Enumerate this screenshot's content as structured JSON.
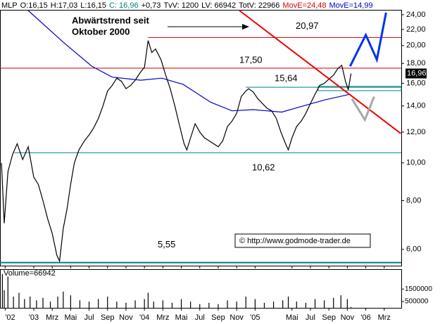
{
  "header": [
    {
      "text": "MLP",
      "color": "#000000"
    },
    {
      "text": "O:16,15",
      "color": "#000000"
    },
    {
      "text": "H:17,03",
      "color": "#000000"
    },
    {
      "text": "L:16,15",
      "color": "#000000"
    },
    {
      "text": "C: 16,96",
      "color": "#008080"
    },
    {
      "text": "+0,73",
      "color": "#000000"
    },
    {
      "text": "TvV: 1200",
      "color": "#000000"
    },
    {
      "text": "LV: 66942",
      "color": "#000000"
    },
    {
      "text": "TotV: 22966",
      "color": "#000000"
    },
    {
      "text": "MovE=24,48",
      "color": "#dd0000"
    },
    {
      "text": "MovE=14,99",
      "color": "#0000cc"
    }
  ],
  "annotation": [
    "Abwärtstrend seit",
    "Oktober 2000"
  ],
  "copyright": "© http://www.godmode-trader.de",
  "chart_data": [
    {
      "type": "line",
      "log_scale": true,
      "xlim": [
        -3.66,
        39.85
      ],
      "ylim": [
        5.45,
        24.7
      ],
      "xticks": [
        {
          "value": -3.1,
          "label": "'02"
        },
        {
          "value": 0,
          "label": "'03"
        },
        {
          "value": 2,
          "label": "Mrz"
        },
        {
          "value": 4,
          "label": "Mai"
        },
        {
          "value": 6,
          "label": "Jul"
        },
        {
          "value": 8,
          "label": "Sep"
        },
        {
          "value": 10,
          "label": "Nov"
        },
        {
          "value": 12,
          "label": "'04"
        },
        {
          "value": 14,
          "label": "Mrz"
        },
        {
          "value": 16,
          "label": "Mai"
        },
        {
          "value": 18,
          "label": "Jul"
        },
        {
          "value": 20,
          "label": "Sep"
        },
        {
          "value": 22,
          "label": "Nov"
        },
        {
          "value": 24,
          "label": "'05"
        },
        {
          "value": 28,
          "label": "Mai"
        },
        {
          "value": 30,
          "label": "Jul"
        },
        {
          "value": 32,
          "label": "Sep"
        },
        {
          "value": 34,
          "label": "Nov"
        },
        {
          "value": 36,
          "label": "'06"
        },
        {
          "value": 38,
          "label": "Mrz"
        }
      ],
      "yticks": [
        {
          "value": 6,
          "label": "6,00"
        },
        {
          "value": 8,
          "label": "8,00"
        },
        {
          "value": 10,
          "label": "10,00"
        },
        {
          "value": 12,
          "label": "12,00"
        },
        {
          "value": 14,
          "label": "14,00"
        },
        {
          "value": 16,
          "label": "16,00"
        },
        {
          "value": 18,
          "label": "18,00"
        },
        {
          "value": 20,
          "label": "20,00"
        },
        {
          "value": 22,
          "label": "22,00"
        },
        {
          "value": 24,
          "label": "24,00"
        }
      ],
      "series": [
        {
          "color": "#000000",
          "x": [
            -3.5,
            -3.2,
            -2.8,
            -2.3,
            -1.8,
            -1.2,
            -0.6,
            0,
            0.5,
            1,
            1.5,
            2,
            2.5,
            2.8,
            3.2,
            3.6,
            4,
            4.4,
            4.9,
            5.5,
            6,
            6.5,
            7,
            7.5,
            8,
            8.5,
            9,
            9.5,
            10,
            10.5,
            11,
            11.5,
            12,
            12.4,
            12.8,
            13.2,
            13.8,
            14.3,
            14.8,
            15.3,
            15.8,
            16.3,
            16.6,
            17,
            17.5,
            18,
            18.5,
            19,
            19.5,
            20,
            20.5,
            21,
            21.5,
            22,
            22.5,
            23,
            23.3,
            23.8,
            24.3,
            24.8,
            25.3,
            25.8,
            26.3,
            26.8,
            27.3,
            27.6,
            28,
            28.5,
            29,
            29.5,
            30,
            30.5,
            31,
            31.5,
            32,
            32.5,
            33,
            33.4,
            33.8,
            34.1,
            34.4
          ],
          "values": [
            10.0,
            7.0,
            9.5,
            10.5,
            11.2,
            10.2,
            11.0,
            9.2,
            8.8,
            8.0,
            7.2,
            6.6,
            5.8,
            5.6,
            6.8,
            7.6,
            8.8,
            10.0,
            10.8,
            11.4,
            11.8,
            12.3,
            13.0,
            14.0,
            15.3,
            15.8,
            16.5,
            16.2,
            15.5,
            15.8,
            16.3,
            17.0,
            17.6,
            20.6,
            19.2,
            19.6,
            18.4,
            16.8,
            15.5,
            14.0,
            12.5,
            11.2,
            10.8,
            11.6,
            12.6,
            12.0,
            11.6,
            11.4,
            11.2,
            11.0,
            11.4,
            12.4,
            12.8,
            13.4,
            14.8,
            15.3,
            15.5,
            15.2,
            14.6,
            14.2,
            13.8,
            13.6,
            13.0,
            12.0,
            11.2,
            10.8,
            11.6,
            12.4,
            12.8,
            13.4,
            14.2,
            15.0,
            15.8,
            16.0,
            16.4,
            16.8,
            17.5,
            17.8,
            16.2,
            15.4,
            16.96
          ]
        },
        {
          "color": "#0000cc",
          "x": [
            -0.6,
            3.2,
            6.3,
            8.5,
            11.6,
            13.9,
            16.2,
            19.2,
            21.5,
            23.8,
            26.9,
            29.2,
            31.5,
            34.3
          ],
          "values": [
            24.6,
            20.4,
            17.7,
            16.6,
            16.3,
            16.5,
            15.9,
            14.3,
            13.6,
            13.7,
            13.5,
            14.0,
            14.5,
            15.0
          ]
        }
      ],
      "levels": [
        {
          "value": 20.97,
          "label": "20,97",
          "color": "#cc0000",
          "x": 12.4
        },
        {
          "value": 17.5,
          "label": "17,50",
          "color": "#cc0000"
        },
        {
          "value": 15.64,
          "label": "15,64",
          "color": "#008080",
          "x": 23.0
        },
        {
          "value": 10.62,
          "label": "10,62",
          "color": "#008080",
          "x": -2.1
        },
        {
          "value": 5.55,
          "label": "5,55",
          "color": "#008080"
        }
      ],
      "trendline": {
        "x": [
          22.3,
          39.8
        ],
        "values": [
          24.6,
          11.9
        ],
        "color": "#ee0000"
      },
      "projections": [
        {
          "x": [
            34.3,
            36.0,
            37.2,
            38.2
          ],
          "values": [
            17.7,
            21.3,
            18.4,
            24.3
          ],
          "color": "#0033ee"
        },
        {
          "x": [
            34.5,
            35.9,
            36.9
          ],
          "values": [
            14.6,
            12.9,
            14.8
          ],
          "color": "#a8a8a8"
        }
      ],
      "last": {
        "value": 16.96,
        "label": "16,96"
      }
    },
    {
      "type": "bar",
      "title": "Volume=66942",
      "color": "#000000",
      "ylim": [
        0,
        3030000
      ],
      "yticks": [
        500000,
        1500000
      ],
      "x": [
        -3.4,
        -3.2,
        -2.8,
        -2.2,
        -1.6,
        -1.0,
        -0.4,
        0.3,
        1,
        1.8,
        2.6,
        3.2,
        4,
        5,
        6,
        7,
        8,
        9,
        10,
        11,
        12,
        12.4,
        13,
        14,
        15,
        16,
        17,
        18,
        19,
        20,
        21,
        22,
        23,
        24,
        25,
        26,
        27,
        27.6,
        28.5,
        29.5,
        30.5,
        31.5,
        32.5,
        33.3,
        34,
        34.4
      ],
      "values": [
        2700000,
        1400000,
        2500000,
        900000,
        1200000,
        700000,
        900000,
        600000,
        800000,
        500000,
        900000,
        1300000,
        1000000,
        600000,
        500000,
        700000,
        900000,
        500000,
        400000,
        600000,
        700000,
        1200000,
        500000,
        600000,
        400000,
        700000,
        500000,
        300000,
        400000,
        300000,
        600000,
        500000,
        900000,
        700000,
        400000,
        500000,
        600000,
        900000,
        500000,
        400000,
        700000,
        600000,
        800000,
        1000000,
        700000,
        66942
      ]
    }
  ]
}
